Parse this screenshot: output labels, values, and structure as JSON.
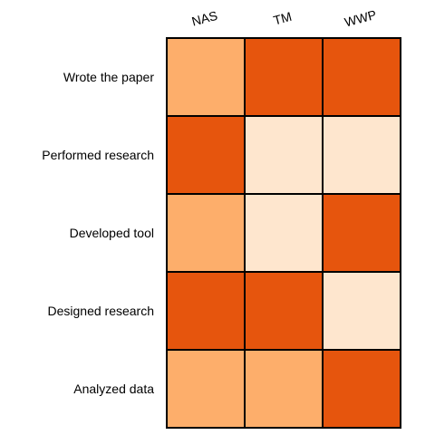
{
  "chart_data": {
    "type": "heatmap",
    "title": "",
    "xlabel": "",
    "ylabel": "",
    "columns": [
      "NAS",
      "TM",
      "WWP"
    ],
    "rows": [
      "Wrote the paper",
      "Performed research",
      "Developed tool",
      "Designed research",
      "Analyzed data"
    ],
    "values": [
      [
        2,
        3,
        3
      ],
      [
        3,
        1,
        1
      ],
      [
        2,
        1,
        3
      ],
      [
        3,
        3,
        1
      ],
      [
        2,
        2,
        3
      ]
    ],
    "level_colors": {
      "1": "#fee6ce",
      "2": "#fdae6b",
      "3": "#e6550d"
    },
    "legend": "none",
    "column_label_rotation_deg": -15
  }
}
